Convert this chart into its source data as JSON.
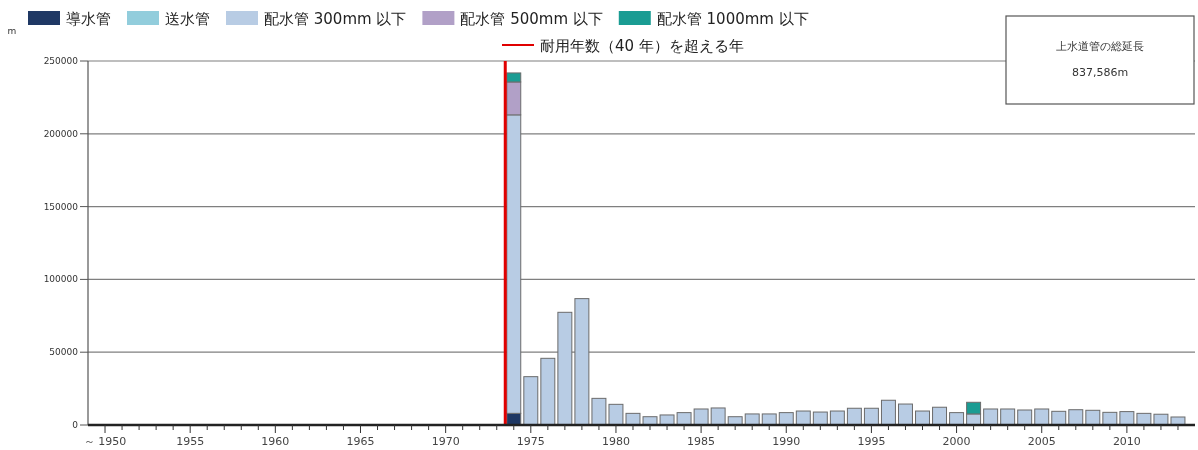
{
  "chart_data": {
    "type": "bar",
    "stacked": true,
    "ylabel": "m",
    "x": [
      1950,
      1951,
      1952,
      1953,
      1954,
      1955,
      1956,
      1957,
      1958,
      1959,
      1960,
      1961,
      1962,
      1963,
      1964,
      1965,
      1966,
      1967,
      1968,
      1969,
      1970,
      1971,
      1972,
      1973,
      1974,
      1975,
      1976,
      1977,
      1978,
      1979,
      1980,
      1981,
      1982,
      1983,
      1984,
      1985,
      1986,
      1987,
      1988,
      1989,
      1990,
      1991,
      1992,
      1993,
      1994,
      1995,
      1996,
      1997,
      1998,
      1999,
      2000,
      2001,
      2002,
      2003,
      2004,
      2005,
      2006,
      2007,
      2008,
      2009,
      2010,
      2011,
      2012,
      2013
    ],
    "series": [
      {
        "name": "導水管",
        "color": "#1f3864",
        "values": [
          0,
          0,
          0,
          0,
          0,
          0,
          0,
          0,
          0,
          0,
          0,
          0,
          0,
          0,
          0,
          0,
          0,
          0,
          0,
          0,
          0,
          0,
          0,
          0,
          8000,
          0,
          0,
          0,
          0,
          0,
          0,
          0,
          0,
          0,
          0,
          0,
          0,
          0,
          0,
          0,
          0,
          0,
          0,
          0,
          0,
          0,
          0,
          0,
          0,
          0,
          0,
          0,
          0,
          0,
          0,
          0,
          0,
          0,
          0,
          0,
          0,
          0,
          0,
          0
        ]
      },
      {
        "name": "送水管",
        "color": "#92cddc",
        "values": [
          0,
          0,
          0,
          0,
          0,
          0,
          0,
          0,
          0,
          0,
          0,
          0,
          0,
          0,
          0,
          0,
          0,
          0,
          0,
          0,
          0,
          0,
          0,
          0,
          0,
          0,
          0,
          0,
          0,
          0,
          0,
          0,
          0,
          0,
          0,
          0,
          0,
          0,
          0,
          0,
          0,
          0,
          0,
          0,
          0,
          0,
          0,
          0,
          0,
          0,
          0,
          0,
          0,
          0,
          0,
          0,
          0,
          0,
          0,
          0,
          0,
          0,
          0,
          0
        ]
      },
      {
        "name": "配水管 300mm 以下",
        "color": "#b8cce4",
        "values": [
          0,
          0,
          0,
          0,
          0,
          0,
          0,
          0,
          0,
          0,
          0,
          0,
          0,
          0,
          0,
          0,
          0,
          0,
          0,
          0,
          0,
          0,
          0,
          0,
          205000,
          33200,
          45800,
          77400,
          86800,
          18300,
          14200,
          8000,
          5700,
          6900,
          8500,
          11000,
          11700,
          5700,
          7600,
          7600,
          8500,
          9600,
          8900,
          9600,
          11500,
          11500,
          17000,
          14400,
          9600,
          12200,
          8500,
          7600,
          11000,
          11000,
          10300,
          11000,
          9400,
          10500,
          10100,
          8700,
          9200,
          8000,
          7400,
          5500
        ]
      },
      {
        "name": "配水管 500mm 以下",
        "color": "#b1a0c7",
        "values": [
          0,
          0,
          0,
          0,
          0,
          0,
          0,
          0,
          0,
          0,
          0,
          0,
          0,
          0,
          0,
          0,
          0,
          0,
          0,
          0,
          0,
          0,
          0,
          0,
          22600,
          0,
          0,
          0,
          0,
          0,
          0,
          0,
          0,
          0,
          0,
          0,
          0,
          0,
          0,
          0,
          0,
          0,
          0,
          0,
          0,
          0,
          0,
          0,
          0,
          0,
          0,
          0,
          0,
          0,
          0,
          0,
          0,
          0,
          0,
          0,
          0,
          0,
          0,
          0
        ]
      },
      {
        "name": "配水管 1000mm 以下",
        "color": "#1a9c93",
        "values": [
          0,
          0,
          0,
          0,
          0,
          0,
          0,
          0,
          0,
          0,
          0,
          0,
          0,
          0,
          0,
          0,
          0,
          0,
          0,
          0,
          0,
          0,
          0,
          0,
          6200,
          0,
          0,
          0,
          0,
          0,
          0,
          0,
          0,
          0,
          0,
          0,
          0,
          0,
          0,
          0,
          0,
          0,
          0,
          0,
          0,
          0,
          0,
          0,
          0,
          0,
          0,
          8000,
          0,
          0,
          0,
          0,
          0,
          0,
          0,
          0,
          0,
          0,
          0,
          0
        ]
      }
    ],
    "xlim": [
      1949,
      2014
    ],
    "xticks": [
      {
        "value": 1950,
        "label": "～ 1950"
      },
      {
        "value": 1951,
        "label": null
      },
      {
        "value": 1952,
        "label": null
      },
      {
        "value": 1953,
        "label": null
      },
      {
        "value": 1954,
        "label": null
      },
      1955,
      {
        "value": 1956,
        "label": null
      },
      {
        "value": 1957,
        "label": null
      },
      {
        "value": 1958,
        "label": null
      },
      {
        "value": 1959,
        "label": null
      },
      1960,
      {
        "value": 1961,
        "label": null
      },
      {
        "value": 1962,
        "label": null
      },
      {
        "value": 1963,
        "label": null
      },
      {
        "value": 1964,
        "label": null
      },
      1965,
      {
        "value": 1966,
        "label": null
      },
      {
        "value": 1967,
        "label": null
      },
      {
        "value": 1968,
        "label": null
      },
      {
        "value": 1969,
        "label": null
      },
      1970,
      {
        "value": 1971,
        "label": null
      },
      {
        "value": 1972,
        "label": null
      },
      {
        "value": 1973,
        "label": null
      },
      {
        "value": 1974,
        "label": null
      },
      1975,
      {
        "value": 1976,
        "label": null
      },
      {
        "value": 1977,
        "label": null
      },
      {
        "value": 1978,
        "label": null
      },
      {
        "value": 1979,
        "label": null
      },
      1980,
      {
        "value": 1981,
        "label": null
      },
      {
        "value": 1982,
        "label": null
      },
      {
        "value": 1983,
        "label": null
      },
      {
        "value": 1984,
        "label": null
      },
      1985,
      {
        "value": 1986,
        "label": null
      },
      {
        "value": 1987,
        "label": null
      },
      {
        "value": 1988,
        "label": null
      },
      {
        "value": 1989,
        "label": null
      },
      1990,
      {
        "value": 1991,
        "label": null
      },
      {
        "value": 1992,
        "label": null
      },
      {
        "value": 1993,
        "label": null
      },
      {
        "value": 1994,
        "label": null
      },
      1995,
      {
        "value": 1996,
        "label": null
      },
      {
        "value": 1997,
        "label": null
      },
      {
        "value": 1998,
        "label": null
      },
      {
        "value": 1999,
        "label": null
      },
      2000,
      {
        "value": 2001,
        "label": null
      },
      {
        "value": 2002,
        "label": null
      },
      {
        "value": 2003,
        "label": null
      },
      {
        "value": 2004,
        "label": null
      },
      2005,
      {
        "value": 2006,
        "label": null
      },
      {
        "value": 2007,
        "label": null
      },
      {
        "value": 2008,
        "label": null
      },
      {
        "value": 2009,
        "label": null
      },
      2010,
      {
        "value": 2011,
        "label": null
      },
      {
        "value": 2012,
        "label": null
      },
      {
        "value": 2013,
        "label": null
      }
    ],
    "ylim": [
      0,
      250000
    ],
    "yticks": [
      0,
      50000,
      100000,
      150000,
      200000,
      250000
    ],
    "grid": "y",
    "legend": "top",
    "ref_lines": [
      {
        "axis": "x",
        "value": 1973.5,
        "label": "耐用年数（40 年）を超える年",
        "color": "#e00000"
      }
    ],
    "annotations": [
      "上水道管の総延長",
      "837,586m"
    ]
  }
}
